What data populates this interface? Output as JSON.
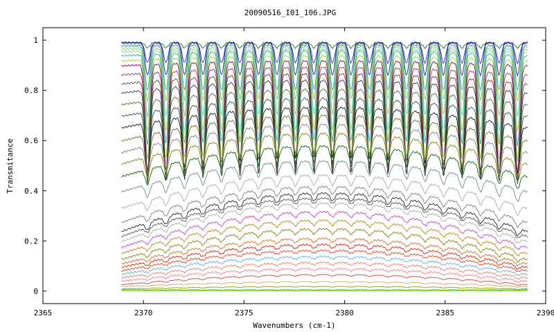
{
  "chart_data": {
    "type": "line",
    "title": "20090516_I01_106.JPG",
    "xlabel": "Wavenumbers (cm-1)",
    "ylabel": "Transmitance",
    "xlim": [
      2365,
      2390
    ],
    "ylim": [
      -0.05,
      1.05
    ],
    "x_ticks": [
      2365,
      2370,
      2375,
      2380,
      2385,
      2390
    ],
    "y_ticks": [
      0,
      0.2,
      0.4,
      0.6,
      0.8,
      1
    ],
    "x_tick_labels": [
      "2365",
      "2370",
      "2375",
      "2380",
      "2385",
      "2390"
    ],
    "y_tick_labels": [
      "0",
      "0.2",
      "0.4",
      "0.6",
      "0.8",
      "1"
    ],
    "grid": false,
    "legend": "none",
    "x_range_data": [
      2368.9,
      2389.1
    ],
    "line_spacing_cm": 0.92,
    "first_line_cm": 2370.2,
    "series": [
      {
        "baseline": 0.99,
        "depth": 0.02,
        "curvature": 0.0,
        "color": "#1a6e1a"
      },
      {
        "baseline": 0.99,
        "depth": 0.08,
        "curvature": 0.0,
        "color": "#2a2ad0"
      },
      {
        "baseline": 0.99,
        "depth": 0.13,
        "curvature": 0.0,
        "color": "#1c1c9a"
      },
      {
        "baseline": 0.98,
        "depth": 0.18,
        "curvature": 0.0,
        "color": "#3aa0e0"
      },
      {
        "baseline": 0.98,
        "depth": 0.22,
        "curvature": 0.01,
        "color": "#8bc34a"
      },
      {
        "baseline": 0.97,
        "depth": 0.27,
        "curvature": 0.01,
        "color": "#66cdaa"
      },
      {
        "baseline": 0.96,
        "depth": 0.32,
        "curvature": 0.01,
        "color": "#a0d070"
      },
      {
        "baseline": 0.95,
        "depth": 0.36,
        "curvature": 0.02,
        "color": "#20b2aa"
      },
      {
        "baseline": 0.93,
        "depth": 0.4,
        "curvature": 0.02,
        "color": "#9acd32"
      },
      {
        "baseline": 0.91,
        "depth": 0.43,
        "curvature": 0.02,
        "color": "#800060"
      },
      {
        "baseline": 0.88,
        "depth": 0.42,
        "curvature": 0.03,
        "color": "#a0306a"
      },
      {
        "baseline": 0.85,
        "depth": 0.4,
        "curvature": 0.04,
        "color": "#6b3a2a"
      },
      {
        "baseline": 0.82,
        "depth": 0.37,
        "curvature": 0.05,
        "color": "#1e3a5a"
      },
      {
        "baseline": 0.78,
        "depth": 0.32,
        "curvature": 0.06,
        "color": "#556b2f"
      },
      {
        "baseline": 0.74,
        "depth": 0.26,
        "curvature": 0.07,
        "color": "#2f4f4f"
      },
      {
        "baseline": 0.7,
        "depth": 0.2,
        "curvature": 0.08,
        "color": "#111111"
      },
      {
        "baseline": 0.66,
        "depth": 0.15,
        "curvature": 0.1,
        "color": "#6a6a20"
      },
      {
        "baseline": 0.62,
        "depth": 0.11,
        "curvature": 0.11,
        "color": "#708090"
      },
      {
        "baseline": 0.58,
        "depth": 0.08,
        "curvature": 0.12,
        "color": "#808000"
      },
      {
        "baseline": 0.53,
        "depth": 0.06,
        "curvature": 0.12,
        "color": "#006400"
      },
      {
        "baseline": 0.47,
        "depth": 0.05,
        "curvature": 0.12,
        "color": "#6a8a8a"
      },
      {
        "baseline": 0.41,
        "depth": 0.04,
        "curvature": 0.13,
        "color": "#a9a9a9"
      },
      {
        "baseline": 0.36,
        "depth": 0.03,
        "curvature": 0.14,
        "color": "#7a7a7a"
      },
      {
        "baseline": 0.33,
        "depth": 0.03,
        "curvature": 0.15,
        "color": "#222222"
      },
      {
        "baseline": 0.31,
        "depth": 0.02,
        "curvature": 0.15,
        "color": "#555555"
      },
      {
        "baseline": 0.29,
        "depth": 0.02,
        "curvature": 0.15,
        "color": "#aaaaaa"
      },
      {
        "baseline": 0.26,
        "depth": 0.02,
        "curvature": 0.14,
        "color": "#c040c0"
      },
      {
        "baseline": 0.23,
        "depth": 0.02,
        "curvature": 0.13,
        "color": "#b8860b"
      },
      {
        "baseline": 0.2,
        "depth": 0.02,
        "curvature": 0.12,
        "color": "#808000"
      },
      {
        "baseline": 0.17,
        "depth": 0.015,
        "curvature": 0.1,
        "color": "#d2691e"
      },
      {
        "baseline": 0.15,
        "depth": 0.015,
        "curvature": 0.09,
        "color": "#cc2200"
      },
      {
        "baseline": 0.13,
        "depth": 0.01,
        "curvature": 0.08,
        "color": "#e04020"
      },
      {
        "baseline": 0.11,
        "depth": 0.01,
        "curvature": 0.07,
        "color": "#5ab0e0"
      },
      {
        "baseline": 0.09,
        "depth": 0.01,
        "curvature": 0.06,
        "color": "#e0806a"
      },
      {
        "baseline": 0.07,
        "depth": 0.008,
        "curvature": 0.05,
        "color": "#f08080"
      },
      {
        "baseline": 0.05,
        "depth": 0.006,
        "curvature": 0.04,
        "color": "#cc4444"
      },
      {
        "baseline": 0.03,
        "depth": 0.004,
        "curvature": 0.02,
        "color": "#e0a060"
      },
      {
        "baseline": 0.015,
        "depth": 0.003,
        "curvature": 0.01,
        "color": "#9a9a00"
      },
      {
        "baseline": 0.005,
        "depth": 0.002,
        "curvature": 0.0,
        "color": "#00aa00"
      },
      {
        "baseline": 0.002,
        "depth": 0.001,
        "curvature": 0.0,
        "color": "#7cfc00"
      }
    ]
  }
}
